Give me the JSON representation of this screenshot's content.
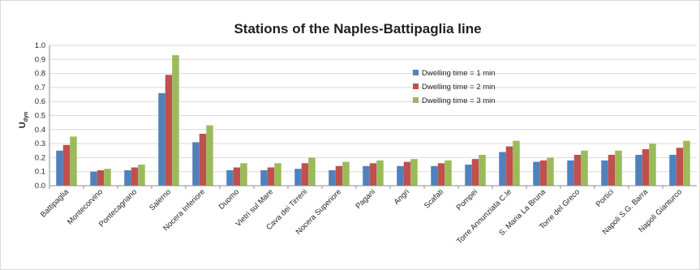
{
  "chart_data": {
    "type": "bar",
    "title": "Stations of the Naples-Battipaglia line",
    "xlabel": "",
    "ylabel": "U",
    "ylabel_sub": "dyn",
    "ylim": [
      0,
      1.0
    ],
    "ytick_step": 0.1,
    "yticks": [
      "0.0",
      "0.1",
      "0.2",
      "0.3",
      "0.4",
      "0.5",
      "0.6",
      "0.7",
      "0.8",
      "0.9",
      "1.0"
    ],
    "grid": true,
    "legend_position": "right",
    "categories": [
      "Battipaglia",
      "Montecorvino",
      "Pontecagnano",
      "Salerno",
      "Nocera Inferiore",
      "Duomo",
      "Vietri sul Mare",
      "Cava dei Tirreni",
      "Nocera Superiore",
      "Pagani",
      "Angri",
      "Scafati",
      "Pompei",
      "Torre Annunziata C.le",
      "S. Maria La Bruna",
      "Torre del Greco",
      "Portici",
      "Napoli S.G. Barra",
      "Napoli Gianturco"
    ],
    "series": [
      {
        "name": "Dwelling time = 1 min",
        "color": "#4f81bd",
        "values": [
          0.25,
          0.1,
          0.11,
          0.66,
          0.31,
          0.11,
          0.11,
          0.12,
          0.11,
          0.14,
          0.14,
          0.14,
          0.15,
          0.24,
          0.17,
          0.18,
          0.18,
          0.22,
          0.22
        ]
      },
      {
        "name": "Dwelling time = 2 min",
        "color": "#c0504d",
        "values": [
          0.29,
          0.11,
          0.13,
          0.79,
          0.37,
          0.13,
          0.13,
          0.16,
          0.14,
          0.16,
          0.17,
          0.16,
          0.19,
          0.28,
          0.18,
          0.22,
          0.22,
          0.26,
          0.27
        ]
      },
      {
        "name": "Dwelling time = 3 min",
        "color": "#9bbb59",
        "values": [
          0.35,
          0.12,
          0.15,
          0.93,
          0.43,
          0.16,
          0.16,
          0.2,
          0.17,
          0.18,
          0.19,
          0.18,
          0.22,
          0.32,
          0.2,
          0.25,
          0.25,
          0.3,
          0.32
        ]
      }
    ]
  }
}
